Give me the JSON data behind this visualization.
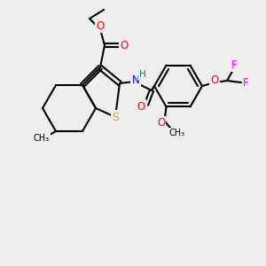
{
  "background_color": "#efefef",
  "line_color": "#000000",
  "line_width": 1.5,
  "atom_colors": {
    "S": "#c8b400",
    "O": "#ff0000",
    "N": "#0000ff",
    "H": "#008080",
    "F": "#ff00ff",
    "C": "#000000"
  },
  "font_size": 7.5
}
